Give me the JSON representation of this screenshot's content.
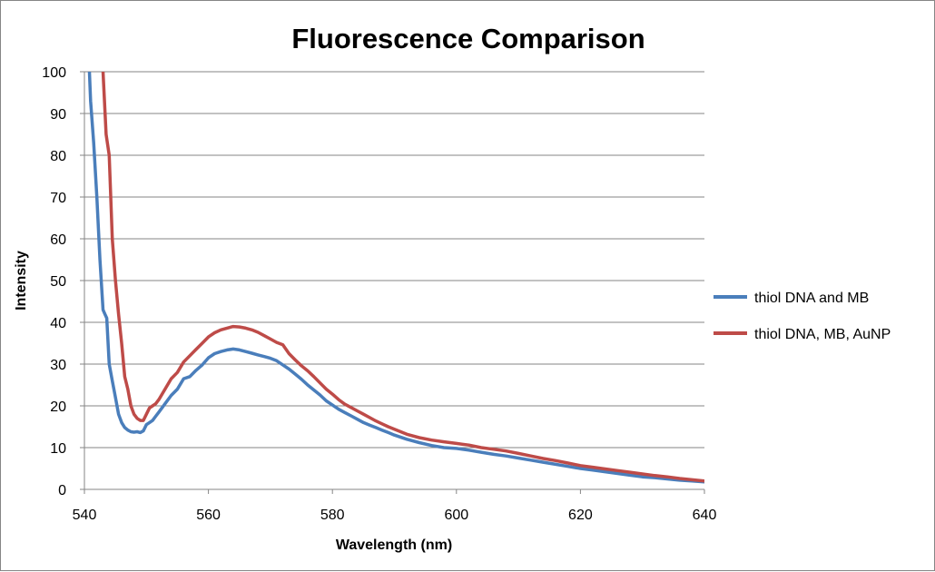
{
  "chart_data": {
    "type": "line",
    "title": "Fluorescence Comparison",
    "xlabel": "Wavelength (nm)",
    "ylabel": "Intensity",
    "xlim": [
      540,
      640
    ],
    "ylim": [
      0,
      100
    ],
    "xticks": [
      "540",
      "560",
      "580",
      "600",
      "620",
      "640"
    ],
    "yticks": [
      "0",
      "10",
      "20",
      "30",
      "40",
      "50",
      "60",
      "70",
      "80",
      "90",
      "100"
    ],
    "grid": "horizontal",
    "legend_position": "right",
    "series": [
      {
        "name": "thiol DNA and MB",
        "color": "#4a7ebb",
        "x": [
          540.8,
          541,
          541.5,
          542,
          542.5,
          543,
          543.3,
          543.6,
          544,
          544.5,
          545,
          545.5,
          546,
          546.5,
          547,
          547.5,
          548,
          548.5,
          549,
          549.5,
          550,
          550.5,
          551,
          551.5,
          552,
          553,
          554,
          555,
          556,
          557,
          558,
          559,
          560,
          561,
          562,
          563,
          564,
          565,
          566,
          567,
          568,
          569,
          570,
          571,
          572,
          573,
          574,
          575,
          576,
          577,
          578,
          579,
          580,
          581,
          582,
          583,
          584,
          585,
          586,
          587,
          588,
          589,
          590,
          592,
          594,
          596,
          598,
          600,
          602,
          604,
          606,
          608,
          610,
          612,
          614,
          616,
          618,
          620,
          622,
          624,
          626,
          628,
          630,
          632,
          634,
          636,
          638,
          640
        ],
        "y": [
          100,
          93,
          83,
          70,
          55,
          43,
          42,
          41,
          30,
          26,
          22,
          18,
          16,
          14.8,
          14.2,
          13.8,
          13.7,
          13.8,
          13.6,
          14.0,
          15.5,
          16.0,
          16.5,
          17.5,
          18.5,
          20.5,
          22.5,
          24.0,
          26.5,
          27.0,
          28.5,
          29.8,
          31.5,
          32.5,
          33.0,
          33.4,
          33.6,
          33.4,
          33.0,
          32.6,
          32.2,
          31.8,
          31.4,
          30.8,
          29.8,
          28.8,
          27.6,
          26.4,
          25.0,
          23.8,
          22.6,
          21.2,
          20.2,
          19.2,
          18.4,
          17.6,
          16.8,
          16.0,
          15.4,
          14.8,
          14.2,
          13.6,
          13.0,
          12.0,
          11.2,
          10.5,
          10.0,
          9.8,
          9.4,
          8.9,
          8.4,
          8.0,
          7.5,
          7.0,
          6.5,
          6.0,
          5.5,
          5.0,
          4.6,
          4.2,
          3.8,
          3.4,
          3.0,
          2.8,
          2.5,
          2.2,
          2.0,
          1.8
        ]
      },
      {
        "name": "thiol DNA, MB, AuNP",
        "color": "#be4b48",
        "x": [
          543,
          543.5,
          544,
          544.5,
          545,
          545.5,
          546,
          546.5,
          547,
          547.5,
          548,
          548.5,
          549,
          549.5,
          550,
          550.5,
          551,
          551.5,
          552,
          553,
          554,
          555,
          556,
          557,
          558,
          559,
          560,
          561,
          562,
          563,
          564,
          565,
          566,
          567,
          568,
          569,
          570,
          571,
          572,
          573,
          574,
          575,
          576,
          577,
          578,
          579,
          580,
          581,
          582,
          583,
          584,
          585,
          586,
          587,
          588,
          589,
          590,
          592,
          594,
          596,
          598,
          600,
          602,
          604,
          606,
          608,
          610,
          612,
          614,
          616,
          618,
          620,
          622,
          624,
          626,
          628,
          630,
          632,
          634,
          636,
          638,
          640
        ],
        "y": [
          100,
          85,
          80,
          60,
          50,
          42,
          35,
          27,
          24,
          20,
          18,
          17,
          16.5,
          16.5,
          18,
          19.5,
          20,
          20.5,
          21.5,
          24,
          26.5,
          28,
          30.5,
          32,
          33.5,
          35,
          36.5,
          37.5,
          38.2,
          38.6,
          39.0,
          38.9,
          38.6,
          38.2,
          37.6,
          36.8,
          36.0,
          35.2,
          34.6,
          32.5,
          31.0,
          29.6,
          28.4,
          27.0,
          25.5,
          24.0,
          22.8,
          21.5,
          20.4,
          19.6,
          18.8,
          18.0,
          17.2,
          16.4,
          15.7,
          15.0,
          14.4,
          13.2,
          12.4,
          11.8,
          11.4,
          11.0,
          10.6,
          10.0,
          9.6,
          9.2,
          8.6,
          8.0,
          7.4,
          6.9,
          6.3,
          5.7,
          5.3,
          4.9,
          4.5,
          4.1,
          3.7,
          3.3,
          3.0,
          2.6,
          2.3,
          2.0
        ]
      }
    ]
  }
}
